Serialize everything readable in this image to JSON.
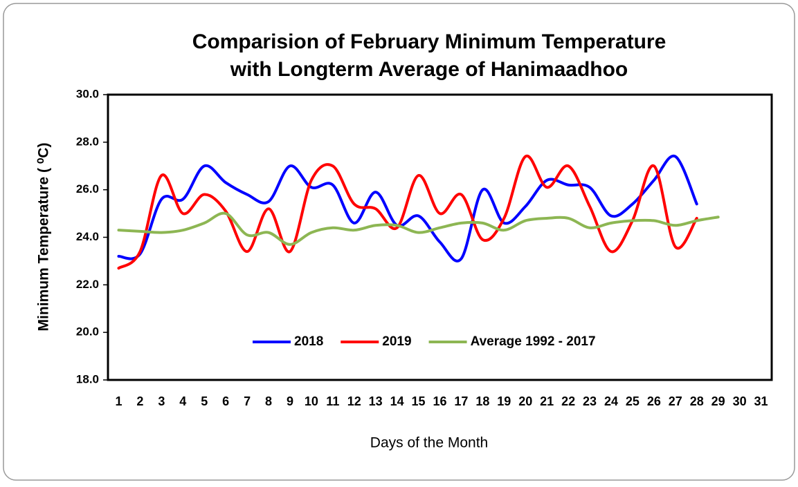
{
  "chart_data": {
    "type": "line",
    "title": [
      "Comparision of February Minimum Temperature",
      "with Longterm Average of Hanimaadhoo"
    ],
    "x_label": "Days of the Month",
    "y_label": "Minimum Temperature ( ⁰C)",
    "categories": [
      "1",
      "2",
      "3",
      "4",
      "5",
      "6",
      "7",
      "8",
      "9",
      "10",
      "11",
      "12",
      "13",
      "14",
      "15",
      "16",
      "17",
      "18",
      "19",
      "20",
      "21",
      "22",
      "23",
      "24",
      "25",
      "26",
      "27",
      "28",
      "29",
      "30",
      "31"
    ],
    "series": [
      {
        "name": "2018",
        "color": "#0000ff",
        "values": [
          23.2,
          23.3,
          25.6,
          25.6,
          27.0,
          26.3,
          25.8,
          25.5,
          27.0,
          26.1,
          26.2,
          24.6,
          25.9,
          24.5,
          24.9,
          23.8,
          23.1,
          26.0,
          24.6,
          25.3,
          26.4,
          26.2,
          26.1,
          24.9,
          25.4,
          26.4,
          27.4,
          25.4,
          null,
          null,
          null
        ]
      },
      {
        "name": "2019",
        "color": "#ff0000",
        "values": [
          22.7,
          23.4,
          26.6,
          25.0,
          25.8,
          25.1,
          23.4,
          25.2,
          23.4,
          26.4,
          27.0,
          25.4,
          25.2,
          24.4,
          26.6,
          25.0,
          25.8,
          23.9,
          24.8,
          27.4,
          26.1,
          27.0,
          25.3,
          23.4,
          24.7,
          27.0,
          23.6,
          24.8,
          null,
          null,
          null
        ]
      },
      {
        "name": "Average 1992 - 2017",
        "color": "#8db653",
        "values": [
          24.3,
          24.25,
          24.2,
          24.3,
          24.6,
          25.0,
          24.1,
          24.2,
          23.7,
          24.2,
          24.4,
          24.3,
          24.5,
          24.5,
          24.2,
          24.4,
          24.6,
          24.6,
          24.3,
          24.7,
          24.8,
          24.8,
          24.4,
          24.6,
          24.7,
          24.7,
          24.5,
          24.7,
          24.85,
          null,
          null
        ]
      }
    ],
    "ylim": [
      18,
      30
    ],
    "yticks": [
      {
        "value": 18,
        "label": "18.0"
      },
      {
        "value": 20,
        "label": "20.0"
      },
      {
        "value": 22,
        "label": "22.0"
      },
      {
        "value": 24,
        "label": "24.0"
      },
      {
        "value": 26,
        "label": "26.0"
      },
      {
        "value": 28,
        "label": "28.0"
      },
      {
        "value": 30,
        "label": "30.0"
      }
    ],
    "grid": false,
    "smooth": true,
    "legend": "bottom"
  }
}
